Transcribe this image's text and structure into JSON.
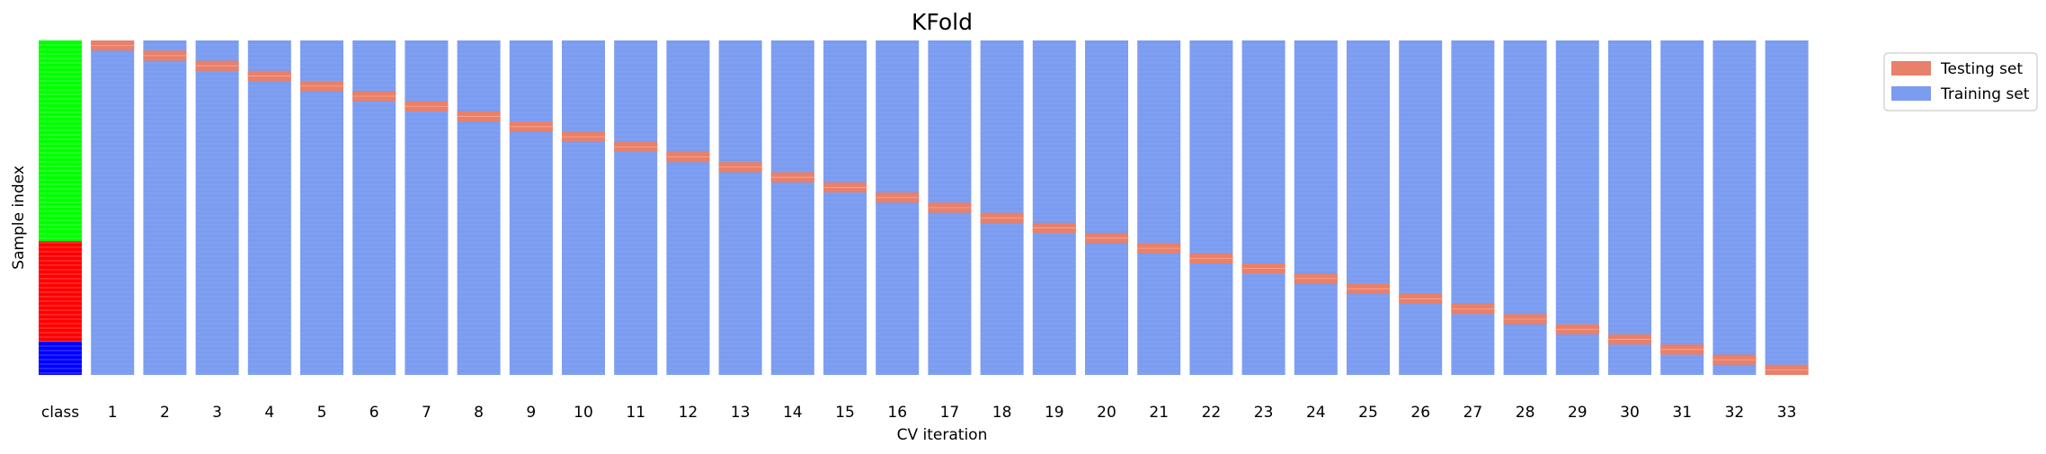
{
  "chart_data": {
    "type": "heatmap",
    "title": "KFold",
    "xlabel": "CV iteration",
    "ylabel": "Sample index",
    "n_splits": 33,
    "class_column_label": "class",
    "iteration_labels": [
      "1",
      "2",
      "3",
      "4",
      "5",
      "6",
      "7",
      "8",
      "9",
      "10",
      "11",
      "12",
      "13",
      "14",
      "15",
      "16",
      "17",
      "18",
      "19",
      "20",
      "21",
      "22",
      "23",
      "24",
      "25",
      "26",
      "27",
      "28",
      "29",
      "30",
      "31",
      "32",
      "33"
    ],
    "class_segments": [
      {
        "class": 0,
        "fraction": 0.6,
        "color": "#00ff00"
      },
      {
        "class": 1,
        "fraction": 0.3,
        "color": "#ff0000"
      },
      {
        "class": 2,
        "fraction": 0.1,
        "color": "#0000ff"
      }
    ],
    "test_fold_fraction": 0.0303,
    "colors": {
      "testing": "#e8806a",
      "training": "#7b9cf0",
      "testing_line": "#ffa893",
      "training_line": "#9fb8f8"
    },
    "legend": {
      "placement": "upper-right-outside",
      "entries": [
        {
          "label": "Testing set",
          "color": "#e8806a"
        },
        {
          "label": "Training set",
          "color": "#7b9cf0"
        }
      ]
    }
  }
}
